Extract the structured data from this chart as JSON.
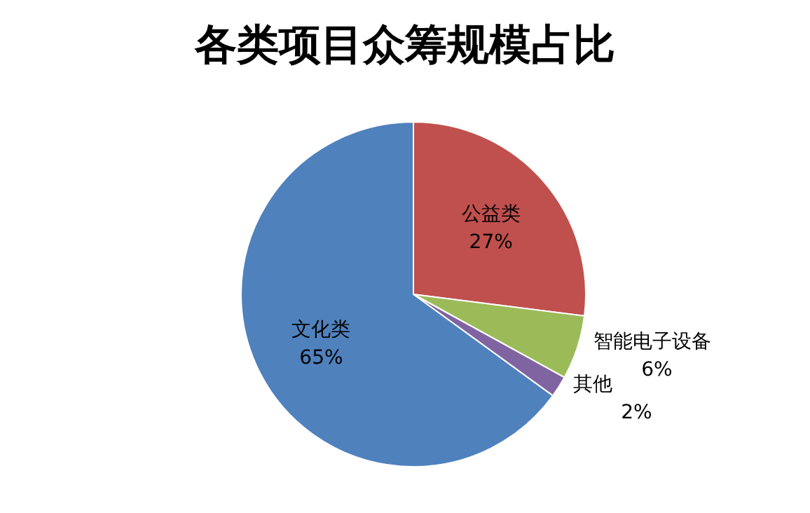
{
  "chart_data": {
    "type": "pie",
    "title": "各类项目众筹规模占比",
    "categories": [
      "公益类",
      "智能电子设备",
      "其他",
      "文化类"
    ],
    "values": [
      27,
      6,
      2,
      65
    ],
    "value_labels": [
      "27%",
      "6%",
      "2%",
      "65%"
    ],
    "colors": [
      "#c0504d",
      "#9bbb59",
      "#8064a2",
      "#4f81bd"
    ]
  }
}
